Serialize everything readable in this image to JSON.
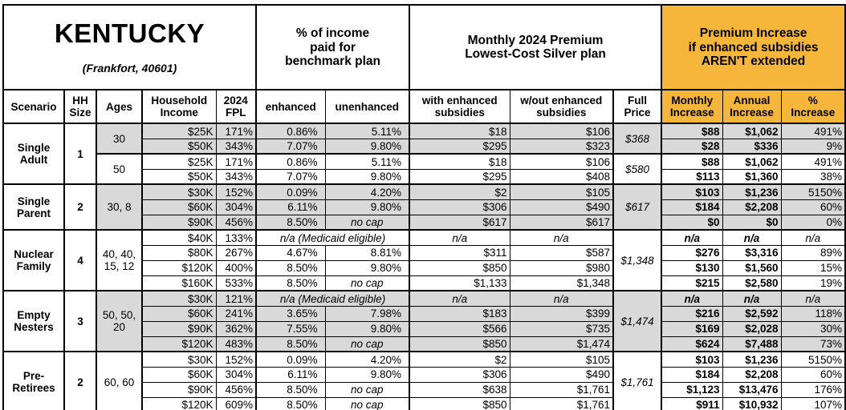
{
  "title": {
    "state": "KENTUCKY",
    "subtitle": "(Frankfort, 40601)"
  },
  "colors": {
    "band_gray": "#D9D9D9",
    "highlight_orange": "#F6B63C",
    "border": "#000000"
  },
  "group_headers": {
    "income_pct": "% of income\npaid for\nbenchmark plan",
    "premium": "Monthly 2024 Premium\nLowest-Cost Silver plan",
    "increase": "Premium Increase\nif enhanced subsidies\nAREN'T extended"
  },
  "column_headers": [
    "Scenario",
    "HH\nSize",
    "Ages",
    "Household\nIncome",
    "2024\nFPL",
    "enhanced",
    "unenhanced",
    "with enhanced\nsubsidies",
    "w/out enhanced\nsubsidies",
    "Full\nPrice",
    "Monthly\nIncrease",
    "Annual\nIncrease",
    "%\nIncrease"
  ],
  "scenarios": [
    {
      "name": "Single\nAdult",
      "hh_size": "1",
      "subgroups": [
        {
          "ages": "30",
          "shaded": true,
          "full_price": "$368",
          "rows": [
            {
              "income": "$25K",
              "fpl": "171%",
              "enhanced": "0.86%",
              "unenhanced": "5.11%",
              "with_sub": "$18",
              "wo_sub": "$106",
              "monthly": "$88",
              "annual": "$1,062",
              "pct": "491%"
            },
            {
              "income": "$50K",
              "fpl": "343%",
              "enhanced": "7.07%",
              "unenhanced": "9.80%",
              "with_sub": "$295",
              "wo_sub": "$323",
              "monthly": "$28",
              "annual": "$336",
              "pct": "9%"
            }
          ]
        },
        {
          "ages": "50",
          "shaded": false,
          "full_price": "$580",
          "rows": [
            {
              "income": "$25K",
              "fpl": "171%",
              "enhanced": "0.86%",
              "unenhanced": "5.11%",
              "with_sub": "$18",
              "wo_sub": "$106",
              "monthly": "$88",
              "annual": "$1,062",
              "pct": "491%"
            },
            {
              "income": "$50K",
              "fpl": "343%",
              "enhanced": "7.07%",
              "unenhanced": "9.80%",
              "with_sub": "$295",
              "wo_sub": "$408",
              "monthly": "$113",
              "annual": "$1,360",
              "pct": "38%"
            }
          ]
        }
      ]
    },
    {
      "name": "Single\nParent",
      "hh_size": "2",
      "subgroups": [
        {
          "ages": "30, 8",
          "shaded": true,
          "full_price": "$617",
          "rows": [
            {
              "income": "$30K",
              "fpl": "152%",
              "enhanced": "0.09%",
              "unenhanced": "4.20%",
              "with_sub": "$2",
              "wo_sub": "$105",
              "monthly": "$103",
              "annual": "$1,236",
              "pct": "5150%"
            },
            {
              "income": "$60K",
              "fpl": "304%",
              "enhanced": "6.11%",
              "unenhanced": "9.80%",
              "with_sub": "$306",
              "wo_sub": "$490",
              "monthly": "$184",
              "annual": "$2,208",
              "pct": "60%"
            },
            {
              "income": "$90K",
              "fpl": "456%",
              "enhanced": "8.50%",
              "unenhanced": "no cap",
              "with_sub": "$617",
              "wo_sub": "$617",
              "monthly": "$0",
              "annual": "$0",
              "pct": "0%"
            }
          ]
        }
      ]
    },
    {
      "name": "Nuclear\nFamily",
      "hh_size": "4",
      "subgroups": [
        {
          "ages": "40, 40,\n15, 12",
          "shaded": false,
          "full_price": "$1,348",
          "rows": [
            {
              "income": "$40K",
              "fpl": "133%",
              "enhanced_merged": "n/a (Medicaid eligible)",
              "with_sub": "n/a",
              "wo_sub": "n/a",
              "monthly": "n/a",
              "annual": "n/a",
              "pct": "n/a"
            },
            {
              "income": "$80K",
              "fpl": "267%",
              "enhanced": "4.67%",
              "unenhanced": "8.81%",
              "with_sub": "$311",
              "wo_sub": "$587",
              "monthly": "$276",
              "annual": "$3,316",
              "pct": "89%"
            },
            {
              "income": "$120K",
              "fpl": "400%",
              "enhanced": "8.50%",
              "unenhanced": "9.80%",
              "with_sub": "$850",
              "wo_sub": "$980",
              "monthly": "$130",
              "annual": "$1,560",
              "pct": "15%"
            },
            {
              "income": "$160K",
              "fpl": "533%",
              "enhanced": "8.50%",
              "unenhanced": "no cap",
              "with_sub": "$1,133",
              "wo_sub": "$1,348",
              "monthly": "$215",
              "annual": "$2,580",
              "pct": "19%"
            }
          ]
        }
      ]
    },
    {
      "name": "Empty\nNesters",
      "hh_size": "3",
      "subgroups": [
        {
          "ages": "50, 50,\n20",
          "shaded": true,
          "full_price": "$1,474",
          "rows": [
            {
              "income": "$30K",
              "fpl": "121%",
              "enhanced_merged": "n/a (Medicaid eligible)",
              "with_sub": "n/a",
              "wo_sub": "n/a",
              "monthly": "n/a",
              "annual": "n/a",
              "pct": "n/a"
            },
            {
              "income": "$60K",
              "fpl": "241%",
              "enhanced": "3.65%",
              "unenhanced": "7.98%",
              "with_sub": "$183",
              "wo_sub": "$399",
              "monthly": "$216",
              "annual": "$2,592",
              "pct": "118%"
            },
            {
              "income": "$90K",
              "fpl": "362%",
              "enhanced": "7.55%",
              "unenhanced": "9.80%",
              "with_sub": "$566",
              "wo_sub": "$735",
              "monthly": "$169",
              "annual": "$2,028",
              "pct": "30%"
            },
            {
              "income": "$120K",
              "fpl": "483%",
              "enhanced": "8.50%",
              "unenhanced": "no cap",
              "with_sub": "$850",
              "wo_sub": "$1,474",
              "monthly": "$624",
              "annual": "$7,488",
              "pct": "73%"
            }
          ]
        }
      ]
    },
    {
      "name": "Pre-\nRetirees",
      "hh_size": "2",
      "subgroups": [
        {
          "ages": "60, 60",
          "shaded": false,
          "full_price": "$1,761",
          "rows": [
            {
              "income": "$30K",
              "fpl": "152%",
              "enhanced": "0.09%",
              "unenhanced": "4.20%",
              "with_sub": "$2",
              "wo_sub": "$105",
              "monthly": "$103",
              "annual": "$1,236",
              "pct": "5150%"
            },
            {
              "income": "$60K",
              "fpl": "304%",
              "enhanced": "6.11%",
              "unenhanced": "9.80%",
              "with_sub": "$306",
              "wo_sub": "$490",
              "monthly": "$184",
              "annual": "$2,208",
              "pct": "60%"
            },
            {
              "income": "$90K",
              "fpl": "456%",
              "enhanced": "8.50%",
              "unenhanced": "no cap",
              "with_sub": "$638",
              "wo_sub": "$1,761",
              "monthly": "$1,123",
              "annual": "$13,476",
              "pct": "176%"
            },
            {
              "income": "$120K",
              "fpl": "609%",
              "enhanced": "8.50%",
              "unenhanced": "no cap",
              "with_sub": "$850",
              "wo_sub": "$1,761",
              "monthly": "$911",
              "annual": "$10,932",
              "pct": "107%"
            }
          ]
        }
      ]
    }
  ]
}
